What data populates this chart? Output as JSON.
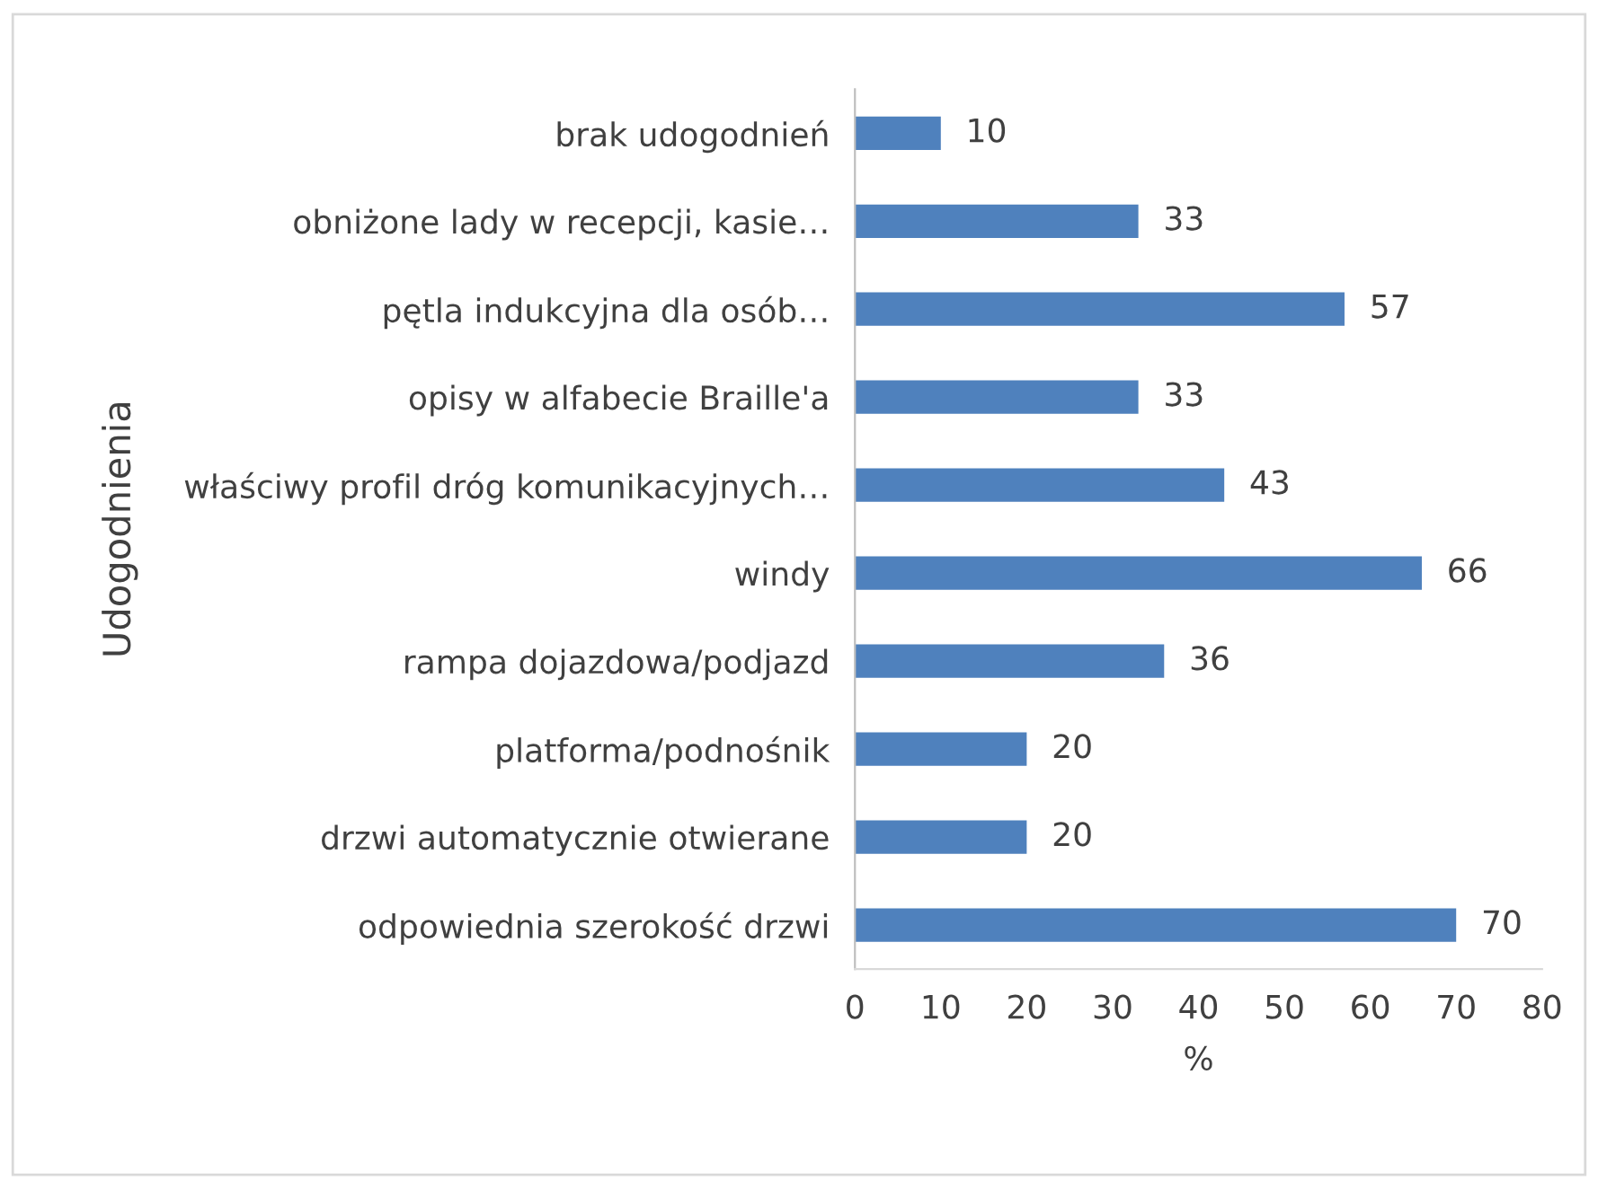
{
  "chart_data": {
    "type": "bar",
    "orientation": "horizontal",
    "ylabel": "Udogodnienia",
    "xlabel": "%",
    "categories": [
      "brak udogodnień",
      "obniżone lady w recepcji, kasie…",
      "pętla indukcyjna dla osób…",
      "opisy w alfabecie Braille'a",
      "właściwy profil dróg komunikacyjnych…",
      "windy",
      "rampa dojazdowa/podjazd",
      "platforma/podnośnik",
      "drzwi automatycznie otwierane",
      "odpowiednia szerokość drzwi"
    ],
    "values": [
      10,
      33,
      57,
      33,
      43,
      66,
      36,
      20,
      20,
      70
    ],
    "color": "#4f81bd",
    "xlim": [
      0,
      80
    ],
    "xticks": [
      0,
      10,
      20,
      30,
      40,
      50,
      60,
      70,
      80
    ],
    "grid": false,
    "legend": false,
    "data_labels": true
  }
}
